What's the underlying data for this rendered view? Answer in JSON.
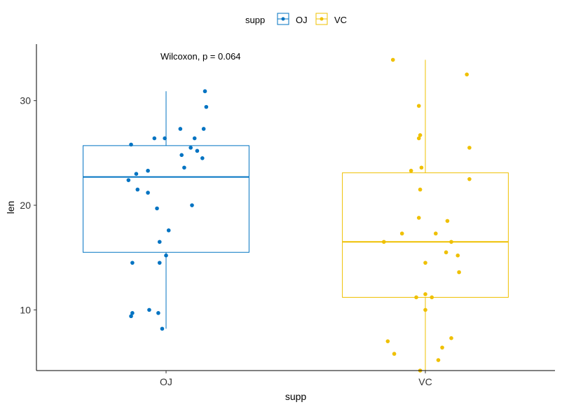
{
  "chart_data": {
    "type": "box",
    "title": "",
    "xlabel": "supp",
    "ylabel": "len",
    "ylim": [
      4.2,
      35.4
    ],
    "y_ticks": [
      10,
      20,
      30
    ],
    "categories": [
      "OJ",
      "VC"
    ],
    "legend": {
      "title": "supp",
      "position": "top",
      "entries": [
        "OJ",
        "VC"
      ]
    },
    "annotation": "Wilcoxon, p = 0.064",
    "grid": false,
    "series": [
      {
        "name": "OJ",
        "color": "#0073C2",
        "box": {
          "min": 8.2,
          "q1": 15.5,
          "median": 22.7,
          "q3": 25.7,
          "max": 30.9
        },
        "points": [
          {
            "jitter": 0.3,
            "y": 30.9
          },
          {
            "jitter": 0.31,
            "y": 29.4
          },
          {
            "jitter": 0.11,
            "y": 27.3
          },
          {
            "jitter": 0.29,
            "y": 27.3
          },
          {
            "jitter": -0.01,
            "y": 26.4
          },
          {
            "jitter": 0.22,
            "y": 26.4
          },
          {
            "jitter": -0.09,
            "y": 26.4
          },
          {
            "jitter": -0.27,
            "y": 25.8
          },
          {
            "jitter": 0.19,
            "y": 25.5
          },
          {
            "jitter": 0.24,
            "y": 25.2
          },
          {
            "jitter": 0.12,
            "y": 24.8
          },
          {
            "jitter": 0.28,
            "y": 24.5
          },
          {
            "jitter": 0.14,
            "y": 23.6
          },
          {
            "jitter": -0.14,
            "y": 23.3
          },
          {
            "jitter": -0.23,
            "y": 23.0
          },
          {
            "jitter": -0.29,
            "y": 22.4
          },
          {
            "jitter": -0.22,
            "y": 21.5
          },
          {
            "jitter": -0.14,
            "y": 21.2
          },
          {
            "jitter": 0.2,
            "y": 20.0
          },
          {
            "jitter": -0.07,
            "y": 19.7
          },
          {
            "jitter": 0.02,
            "y": 17.6
          },
          {
            "jitter": -0.05,
            "y": 16.5
          },
          {
            "jitter": 0.0,
            "y": 15.2
          },
          {
            "jitter": -0.26,
            "y": 14.5
          },
          {
            "jitter": -0.05,
            "y": 14.5
          },
          {
            "jitter": -0.13,
            "y": 10.0
          },
          {
            "jitter": -0.26,
            "y": 9.7
          },
          {
            "jitter": -0.06,
            "y": 9.7
          },
          {
            "jitter": -0.27,
            "y": 9.4
          },
          {
            "jitter": -0.03,
            "y": 8.2
          }
        ]
      },
      {
        "name": "VC",
        "color": "#EFC000",
        "box": {
          "min": 4.2,
          "q1": 11.2,
          "median": 16.5,
          "q3": 23.1,
          "max": 33.9
        },
        "points": [
          {
            "jitter": -0.25,
            "y": 33.9
          },
          {
            "jitter": 0.32,
            "y": 32.5
          },
          {
            "jitter": -0.05,
            "y": 29.5
          },
          {
            "jitter": -0.04,
            "y": 26.7
          },
          {
            "jitter": -0.05,
            "y": 26.4
          },
          {
            "jitter": 0.34,
            "y": 25.5
          },
          {
            "jitter": -0.03,
            "y": 23.6
          },
          {
            "jitter": -0.11,
            "y": 23.3
          },
          {
            "jitter": 0.34,
            "y": 22.5
          },
          {
            "jitter": -0.04,
            "y": 21.5
          },
          {
            "jitter": -0.05,
            "y": 18.8
          },
          {
            "jitter": 0.17,
            "y": 18.5
          },
          {
            "jitter": -0.18,
            "y": 17.3
          },
          {
            "jitter": 0.08,
            "y": 17.3
          },
          {
            "jitter": 0.2,
            "y": 16.5
          },
          {
            "jitter": -0.32,
            "y": 16.5
          },
          {
            "jitter": 0.16,
            "y": 15.5
          },
          {
            "jitter": 0.25,
            "y": 15.2
          },
          {
            "jitter": 0.0,
            "y": 14.5
          },
          {
            "jitter": 0.26,
            "y": 13.6
          },
          {
            "jitter": 0.0,
            "y": 11.5
          },
          {
            "jitter": -0.07,
            "y": 11.2
          },
          {
            "jitter": 0.05,
            "y": 11.2
          },
          {
            "jitter": 0.0,
            "y": 10.0
          },
          {
            "jitter": 0.2,
            "y": 7.3
          },
          {
            "jitter": -0.29,
            "y": 7.0
          },
          {
            "jitter": 0.13,
            "y": 6.4
          },
          {
            "jitter": -0.24,
            "y": 5.8
          },
          {
            "jitter": 0.1,
            "y": 5.2
          },
          {
            "jitter": -0.04,
            "y": 4.2
          }
        ]
      }
    ]
  }
}
